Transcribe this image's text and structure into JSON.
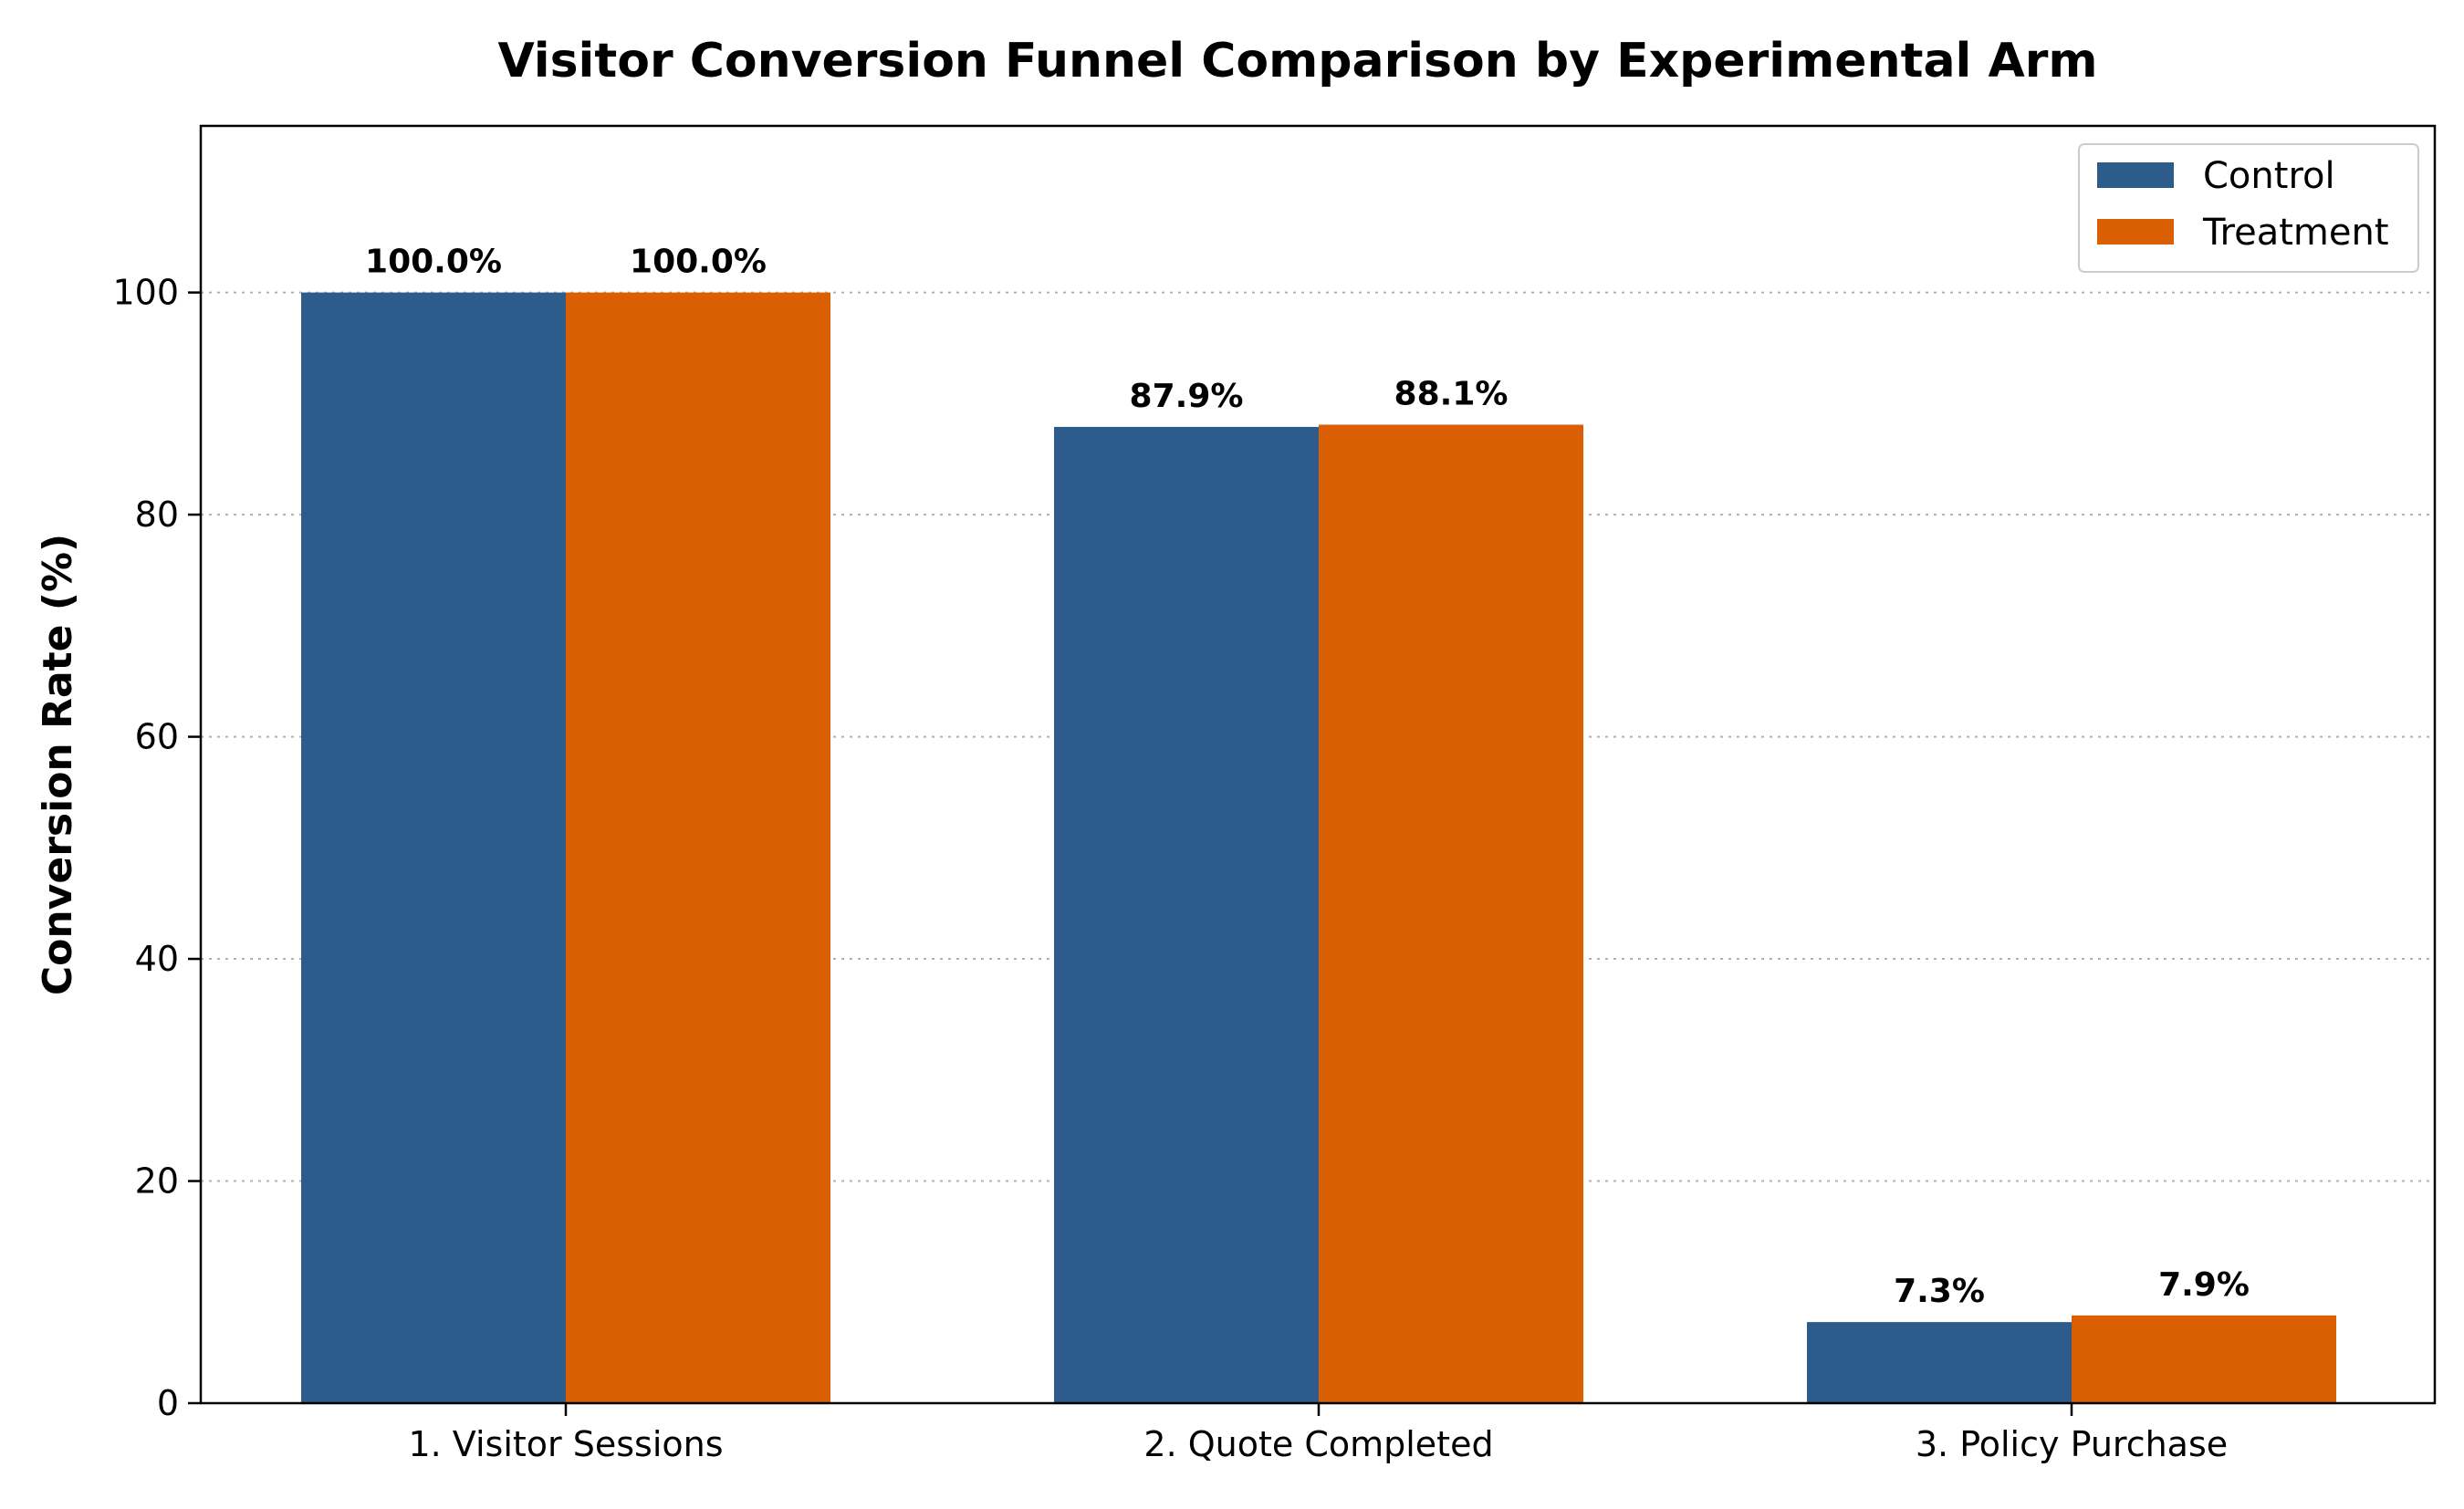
{
  "chart_data": {
    "type": "bar",
    "title": "Visitor Conversion Funnel Comparison by Experimental Arm",
    "xlabel": "",
    "ylabel": "Conversion Rate (%)",
    "categories": [
      "1. Visitor Sessions",
      "2. Quote Completed",
      "3. Policy Purchase"
    ],
    "series": [
      {
        "name": "Control",
        "color": "#2c5b8c",
        "values": [
          100.0,
          87.9,
          7.3
        ],
        "labels": [
          "100.0%",
          "87.9%",
          "7.3%"
        ]
      },
      {
        "name": "Treatment",
        "color": "#d95f02",
        "values": [
          100.0,
          88.1,
          7.9
        ],
        "labels": [
          "100.0%",
          "88.1%",
          "7.9%"
        ]
      }
    ],
    "ylim": [
      0,
      115
    ],
    "yticks": [
      0,
      20,
      40,
      60,
      80,
      100
    ],
    "ytick_labels": [
      "0",
      "20",
      "40",
      "60",
      "80",
      "100"
    ],
    "grid": "y-dotted",
    "legend_position": "top-right"
  }
}
